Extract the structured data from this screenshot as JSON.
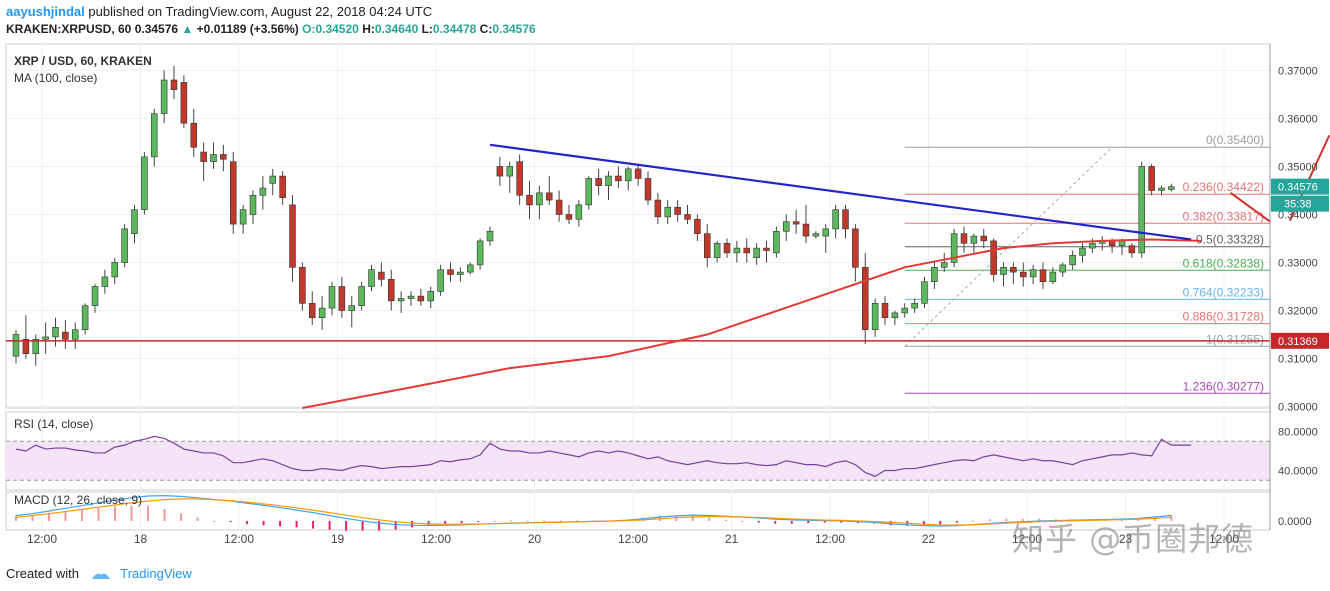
{
  "header": {
    "author": "aayushjindal",
    "published_text": "published on TradingView.com, August 22, 2018 04:24 UTC",
    "symbol": "KRAKEN:XRPUSD, 60",
    "last": "0.34576",
    "change_arrow": "▲",
    "change": "+0.01189 (+3.56%)",
    "o_label": "O:",
    "o": "0.34520",
    "h_label": "H:",
    "h": "0.34640",
    "l_label": "L:",
    "l": "0.34478",
    "c_label": "C:",
    "c": "0.34576"
  },
  "footer": {
    "created_with": "Created with",
    "brand": "TradingView"
  },
  "watermark": "知乎 @币圈邦德",
  "colors": {
    "up": "#26a69a",
    "down": "#ef5350",
    "candle_up_fill": "#5cb85c",
    "candle_down_fill": "#c0392b",
    "ma": "#e53935",
    "trendline": "#2424c8",
    "support": "#c62828",
    "rsi": "#7b3fa0",
    "rsi_band": "#f3e5f5",
    "macd_line": "#42a5f5",
    "signal_line": "#ff9800"
  },
  "chart_data": {
    "type": "candlestick",
    "title": "XRP / USD, 60, KRAKEN",
    "indicator_label": "MA (100, close)",
    "y_axis": {
      "ylim": [
        0.2997,
        0.3755
      ],
      "ticks": [
        "0.37000",
        "0.36000",
        "0.35000",
        "0.34000",
        "0.33000",
        "0.32000",
        "0.31000",
        "0.30000"
      ],
      "price_tag": "0.34576",
      "countdown": "35:38",
      "support_tag": "0.31369"
    },
    "x_axis": {
      "ticks": [
        "12:00",
        "18",
        "12:00",
        "19",
        "12:00",
        "20",
        "12:00",
        "21",
        "12:00",
        "22",
        "12:00",
        "23",
        "12:00"
      ]
    },
    "candles": [
      {
        "o": 0.3105,
        "h": 0.316,
        "l": 0.309,
        "c": 0.315
      },
      {
        "o": 0.314,
        "h": 0.319,
        "l": 0.31,
        "c": 0.311
      },
      {
        "o": 0.311,
        "h": 0.315,
        "l": 0.3085,
        "c": 0.314
      },
      {
        "o": 0.314,
        "h": 0.3175,
        "l": 0.311,
        "c": 0.3145
      },
      {
        "o": 0.3145,
        "h": 0.3185,
        "l": 0.3125,
        "c": 0.3165
      },
      {
        "o": 0.3155,
        "h": 0.318,
        "l": 0.312,
        "c": 0.314
      },
      {
        "o": 0.314,
        "h": 0.3175,
        "l": 0.312,
        "c": 0.316
      },
      {
        "o": 0.316,
        "h": 0.3215,
        "l": 0.315,
        "c": 0.321
      },
      {
        "o": 0.321,
        "h": 0.3255,
        "l": 0.3195,
        "c": 0.325
      },
      {
        "o": 0.325,
        "h": 0.3285,
        "l": 0.3235,
        "c": 0.327
      },
      {
        "o": 0.327,
        "h": 0.331,
        "l": 0.3255,
        "c": 0.33
      },
      {
        "o": 0.33,
        "h": 0.338,
        "l": 0.329,
        "c": 0.337
      },
      {
        "o": 0.336,
        "h": 0.342,
        "l": 0.334,
        "c": 0.341
      },
      {
        "o": 0.341,
        "h": 0.353,
        "l": 0.34,
        "c": 0.352
      },
      {
        "o": 0.352,
        "h": 0.362,
        "l": 0.35,
        "c": 0.361
      },
      {
        "o": 0.361,
        "h": 0.37,
        "l": 0.359,
        "c": 0.368
      },
      {
        "o": 0.368,
        "h": 0.371,
        "l": 0.364,
        "c": 0.366
      },
      {
        "o": 0.3675,
        "h": 0.369,
        "l": 0.358,
        "c": 0.359
      },
      {
        "o": 0.359,
        "h": 0.362,
        "l": 0.352,
        "c": 0.354
      },
      {
        "o": 0.353,
        "h": 0.355,
        "l": 0.347,
        "c": 0.351
      },
      {
        "o": 0.351,
        "h": 0.355,
        "l": 0.3495,
        "c": 0.3525
      },
      {
        "o": 0.3525,
        "h": 0.3545,
        "l": 0.349,
        "c": 0.3515
      },
      {
        "o": 0.351,
        "h": 0.353,
        "l": 0.336,
        "c": 0.338
      },
      {
        "o": 0.338,
        "h": 0.342,
        "l": 0.336,
        "c": 0.341
      },
      {
        "o": 0.34,
        "h": 0.345,
        "l": 0.338,
        "c": 0.344
      },
      {
        "o": 0.344,
        "h": 0.348,
        "l": 0.341,
        "c": 0.3455
      },
      {
        "o": 0.3465,
        "h": 0.3495,
        "l": 0.344,
        "c": 0.348
      },
      {
        "o": 0.348,
        "h": 0.349,
        "l": 0.342,
        "c": 0.3435
      },
      {
        "o": 0.342,
        "h": 0.344,
        "l": 0.326,
        "c": 0.329
      },
      {
        "o": 0.329,
        "h": 0.33,
        "l": 0.32,
        "c": 0.3215
      },
      {
        "o": 0.3215,
        "h": 0.324,
        "l": 0.317,
        "c": 0.3185
      },
      {
        "o": 0.3185,
        "h": 0.323,
        "l": 0.316,
        "c": 0.3205
      },
      {
        "o": 0.3205,
        "h": 0.326,
        "l": 0.319,
        "c": 0.325
      },
      {
        "o": 0.325,
        "h": 0.327,
        "l": 0.3185,
        "c": 0.32
      },
      {
        "o": 0.32,
        "h": 0.323,
        "l": 0.3165,
        "c": 0.321
      },
      {
        "o": 0.321,
        "h": 0.326,
        "l": 0.32,
        "c": 0.325
      },
      {
        "o": 0.325,
        "h": 0.3295,
        "l": 0.324,
        "c": 0.3285
      },
      {
        "o": 0.328,
        "h": 0.33,
        "l": 0.325,
        "c": 0.3265
      },
      {
        "o": 0.3265,
        "h": 0.3285,
        "l": 0.32,
        "c": 0.322
      },
      {
        "o": 0.322,
        "h": 0.324,
        "l": 0.3195,
        "c": 0.3225
      },
      {
        "o": 0.3225,
        "h": 0.324,
        "l": 0.321,
        "c": 0.323
      },
      {
        "o": 0.323,
        "h": 0.3245,
        "l": 0.321,
        "c": 0.322
      },
      {
        "o": 0.322,
        "h": 0.325,
        "l": 0.3205,
        "c": 0.324
      },
      {
        "o": 0.324,
        "h": 0.3295,
        "l": 0.323,
        "c": 0.3285
      },
      {
        "o": 0.3285,
        "h": 0.33,
        "l": 0.326,
        "c": 0.3275
      },
      {
        "o": 0.3275,
        "h": 0.329,
        "l": 0.326,
        "c": 0.328
      },
      {
        "o": 0.328,
        "h": 0.33,
        "l": 0.3275,
        "c": 0.3295
      },
      {
        "o": 0.3295,
        "h": 0.335,
        "l": 0.3285,
        "c": 0.3345
      },
      {
        "o": 0.3345,
        "h": 0.3375,
        "l": 0.3335,
        "c": 0.3365
      },
      {
        "o": 0.35,
        "h": 0.352,
        "l": 0.346,
        "c": 0.348
      },
      {
        "o": 0.348,
        "h": 0.351,
        "l": 0.3445,
        "c": 0.35
      },
      {
        "o": 0.351,
        "h": 0.3525,
        "l": 0.342,
        "c": 0.344
      },
      {
        "o": 0.344,
        "h": 0.347,
        "l": 0.339,
        "c": 0.342
      },
      {
        "o": 0.342,
        "h": 0.346,
        "l": 0.339,
        "c": 0.3445
      },
      {
        "o": 0.3445,
        "h": 0.348,
        "l": 0.342,
        "c": 0.343
      },
      {
        "o": 0.343,
        "h": 0.345,
        "l": 0.3385,
        "c": 0.34
      },
      {
        "o": 0.34,
        "h": 0.342,
        "l": 0.338,
        "c": 0.339
      },
      {
        "o": 0.339,
        "h": 0.343,
        "l": 0.3375,
        "c": 0.342
      },
      {
        "o": 0.342,
        "h": 0.348,
        "l": 0.341,
        "c": 0.3475
      },
      {
        "o": 0.3475,
        "h": 0.3495,
        "l": 0.344,
        "c": 0.346
      },
      {
        "o": 0.346,
        "h": 0.349,
        "l": 0.343,
        "c": 0.348
      },
      {
        "o": 0.348,
        "h": 0.35,
        "l": 0.3455,
        "c": 0.347
      },
      {
        "o": 0.347,
        "h": 0.35,
        "l": 0.345,
        "c": 0.3495
      },
      {
        "o": 0.3495,
        "h": 0.3505,
        "l": 0.346,
        "c": 0.3475
      },
      {
        "o": 0.3475,
        "h": 0.349,
        "l": 0.342,
        "c": 0.343
      },
      {
        "o": 0.343,
        "h": 0.3445,
        "l": 0.338,
        "c": 0.3395
      },
      {
        "o": 0.3395,
        "h": 0.343,
        "l": 0.338,
        "c": 0.3415
      },
      {
        "o": 0.3415,
        "h": 0.343,
        "l": 0.3385,
        "c": 0.34
      },
      {
        "o": 0.34,
        "h": 0.342,
        "l": 0.338,
        "c": 0.339
      },
      {
        "o": 0.339,
        "h": 0.34,
        "l": 0.3345,
        "c": 0.336
      },
      {
        "o": 0.336,
        "h": 0.338,
        "l": 0.329,
        "c": 0.331
      },
      {
        "o": 0.331,
        "h": 0.3345,
        "l": 0.33,
        "c": 0.334
      },
      {
        "o": 0.334,
        "h": 0.335,
        "l": 0.331,
        "c": 0.332
      },
      {
        "o": 0.332,
        "h": 0.3345,
        "l": 0.33,
        "c": 0.333
      },
      {
        "o": 0.333,
        "h": 0.335,
        "l": 0.33,
        "c": 0.332
      },
      {
        "o": 0.331,
        "h": 0.334,
        "l": 0.3295,
        "c": 0.333
      },
      {
        "o": 0.333,
        "h": 0.3345,
        "l": 0.33,
        "c": 0.3325
      },
      {
        "o": 0.332,
        "h": 0.3375,
        "l": 0.331,
        "c": 0.3365
      },
      {
        "o": 0.3365,
        "h": 0.34,
        "l": 0.3345,
        "c": 0.3385
      },
      {
        "o": 0.3385,
        "h": 0.341,
        "l": 0.336,
        "c": 0.338
      },
      {
        "o": 0.338,
        "h": 0.342,
        "l": 0.334,
        "c": 0.3355
      },
      {
        "o": 0.3355,
        "h": 0.3365,
        "l": 0.335,
        "c": 0.336
      },
      {
        "o": 0.3355,
        "h": 0.338,
        "l": 0.332,
        "c": 0.337
      },
      {
        "o": 0.337,
        "h": 0.342,
        "l": 0.335,
        "c": 0.341
      },
      {
        "o": 0.341,
        "h": 0.342,
        "l": 0.335,
        "c": 0.337
      },
      {
        "o": 0.337,
        "h": 0.338,
        "l": 0.326,
        "c": 0.329
      },
      {
        "o": 0.329,
        "h": 0.332,
        "l": 0.313,
        "c": 0.316
      },
      {
        "o": 0.316,
        "h": 0.3225,
        "l": 0.3145,
        "c": 0.3215
      },
      {
        "o": 0.3215,
        "h": 0.323,
        "l": 0.317,
        "c": 0.3185
      },
      {
        "o": 0.3185,
        "h": 0.32,
        "l": 0.317,
        "c": 0.3195
      },
      {
        "o": 0.3195,
        "h": 0.3215,
        "l": 0.3185,
        "c": 0.3205
      },
      {
        "o": 0.3205,
        "h": 0.3225,
        "l": 0.3195,
        "c": 0.3215
      },
      {
        "o": 0.3215,
        "h": 0.327,
        "l": 0.3205,
        "c": 0.326
      },
      {
        "o": 0.326,
        "h": 0.33,
        "l": 0.3245,
        "c": 0.329
      },
      {
        "o": 0.329,
        "h": 0.332,
        "l": 0.328,
        "c": 0.33
      },
      {
        "o": 0.33,
        "h": 0.337,
        "l": 0.329,
        "c": 0.336
      },
      {
        "o": 0.336,
        "h": 0.3375,
        "l": 0.332,
        "c": 0.334
      },
      {
        "o": 0.334,
        "h": 0.336,
        "l": 0.332,
        "c": 0.3355
      },
      {
        "o": 0.3355,
        "h": 0.337,
        "l": 0.333,
        "c": 0.3345
      },
      {
        "o": 0.3345,
        "h": 0.335,
        "l": 0.326,
        "c": 0.3275
      },
      {
        "o": 0.3275,
        "h": 0.33,
        "l": 0.325,
        "c": 0.329
      },
      {
        "o": 0.329,
        "h": 0.33,
        "l": 0.3255,
        "c": 0.328
      },
      {
        "o": 0.328,
        "h": 0.33,
        "l": 0.325,
        "c": 0.327
      },
      {
        "o": 0.327,
        "h": 0.3295,
        "l": 0.3255,
        "c": 0.3285
      },
      {
        "o": 0.3285,
        "h": 0.33,
        "l": 0.3245,
        "c": 0.326
      },
      {
        "o": 0.326,
        "h": 0.329,
        "l": 0.3255,
        "c": 0.328
      },
      {
        "o": 0.328,
        "h": 0.33,
        "l": 0.327,
        "c": 0.3295
      },
      {
        "o": 0.3295,
        "h": 0.3325,
        "l": 0.3285,
        "c": 0.3315
      },
      {
        "o": 0.3315,
        "h": 0.334,
        "l": 0.33,
        "c": 0.333
      },
      {
        "o": 0.333,
        "h": 0.335,
        "l": 0.332,
        "c": 0.334
      },
      {
        "o": 0.334,
        "h": 0.3355,
        "l": 0.3325,
        "c": 0.3345
      },
      {
        "o": 0.3345,
        "h": 0.335,
        "l": 0.332,
        "c": 0.3335
      },
      {
        "o": 0.3335,
        "h": 0.335,
        "l": 0.3315,
        "c": 0.3345
      },
      {
        "o": 0.3335,
        "h": 0.334,
        "l": 0.331,
        "c": 0.332
      },
      {
        "o": 0.332,
        "h": 0.351,
        "l": 0.331,
        "c": 0.35
      },
      {
        "o": 0.35,
        "h": 0.3505,
        "l": 0.344,
        "c": 0.345
      },
      {
        "o": 0.345,
        "h": 0.346,
        "l": 0.344,
        "c": 0.3455
      },
      {
        "o": 0.3452,
        "h": 0.3464,
        "l": 0.3448,
        "c": 0.3458
      }
    ],
    "ma": {
      "label": "MA (100, close)",
      "points": [
        [
          29,
          0.2997
        ],
        [
          40,
          0.304
        ],
        [
          50,
          0.308
        ],
        [
          60,
          0.3105
        ],
        [
          70,
          0.315
        ],
        [
          80,
          0.322
        ],
        [
          90,
          0.329
        ],
        [
          95,
          0.331
        ],
        [
          100,
          0.333
        ],
        [
          105,
          0.334
        ],
        [
          110,
          0.3345
        ],
        [
          115,
          0.3348
        ],
        [
          120,
          0.3345
        ]
      ]
    },
    "trendline": {
      "x0": 48,
      "y0": 0.3545,
      "x1": 119,
      "y1": 0.3348
    },
    "support_line": {
      "value": 0.31369,
      "label": "0.31369"
    },
    "fib_levels": [
      {
        "label": "0(0.35400)",
        "value": 0.354,
        "color": "#9e9e9e"
      },
      {
        "label": "0.236(0.34422)",
        "value": 0.34422,
        "color": "#e57373"
      },
      {
        "label": "0.382(0.33817)",
        "value": 0.33817,
        "color": "#e57373"
      },
      {
        "label": "0.5(0.33328)",
        "value": 0.33328,
        "color": "#616161"
      },
      {
        "label": "0.618(0.32838)",
        "value": 0.32838,
        "color": "#4caf50"
      },
      {
        "label": "0.764(0.32233)",
        "value": 0.32233,
        "color": "#64b5f6"
      },
      {
        "label": "0.886(0.31728)",
        "value": 0.31728,
        "color": "#e57373"
      },
      {
        "label": "1(0.31255)",
        "value": 0.31255,
        "color": "#90a4ae"
      },
      {
        "label": "1.236(0.30277)",
        "value": 0.30277,
        "color": "#ab47bc"
      }
    ],
    "fib_range": {
      "x_start": 90,
      "x_end": 158,
      "label_x": 145
    },
    "arrows": [
      {
        "points": [
          [
            123,
            0.3445
          ],
          [
            127,
            0.3385
          ]
        ],
        "color": "#d32f2f"
      },
      {
        "points": [
          [
            129,
            0.3387
          ],
          [
            133,
            0.3565
          ]
        ],
        "color": "#d32f2f"
      }
    ],
    "rsi": {
      "label": "RSI (14, close)",
      "ticks": [
        "80.0000",
        "40.0000"
      ],
      "ylim": [
        20,
        100
      ],
      "band": [
        30,
        70
      ],
      "values": [
        62,
        60,
        66,
        62,
        63,
        63,
        61,
        60,
        58,
        58,
        64,
        66,
        70,
        72,
        75,
        73,
        68,
        62,
        60,
        58,
        58,
        55,
        48,
        48,
        50,
        52,
        50,
        46,
        42,
        40,
        40,
        42,
        41,
        40,
        43,
        45,
        44,
        42,
        43,
        44,
        44,
        45,
        46,
        50,
        49,
        51,
        52,
        56,
        68,
        62,
        60,
        60,
        58,
        58,
        60,
        58,
        56,
        54,
        58,
        60,
        58,
        60,
        58,
        55,
        52,
        54,
        50,
        48,
        46,
        48,
        50,
        48,
        47,
        47,
        48,
        46,
        45,
        46,
        50,
        48,
        46,
        46,
        44,
        48,
        50,
        46,
        38,
        34,
        40,
        40,
        42,
        42,
        44,
        46,
        48,
        50,
        51,
        50,
        54,
        56,
        54,
        52,
        50,
        52,
        50,
        50,
        48,
        46,
        50,
        52,
        54,
        56,
        56,
        58,
        56,
        55,
        72,
        66,
        66,
        66
      ]
    },
    "macd": {
      "label": "MACD (12, 26, close, 9)",
      "ticks": [
        "0.0000"
      ],
      "ylim": [
        -0.005,
        0.016
      ],
      "macd": [
        0.003,
        0.004,
        0.0055,
        0.007,
        0.0085,
        0.01,
        0.0115,
        0.0128,
        0.0138,
        0.014,
        0.0136,
        0.0128,
        0.0118,
        0.011,
        0.0098,
        0.0086,
        0.0074,
        0.006,
        0.0046,
        0.003,
        0.0014,
        0.0,
        -0.0012,
        -0.002,
        -0.0024,
        -0.0025,
        -0.0024,
        -0.0022,
        -0.0018,
        -0.0015,
        -0.0012,
        -0.001,
        -0.0008,
        -0.0006,
        -0.0004,
        -0.0002,
        0.0,
        0.0004,
        0.0012,
        0.0022,
        0.0028,
        0.0032,
        0.003,
        0.0026,
        0.0022,
        0.0016,
        0.001,
        0.0006,
        0.0004,
        0.0002,
        0.0,
        -0.0004,
        -0.0008,
        -0.0016,
        -0.0022,
        -0.0026,
        -0.0028,
        -0.0026,
        -0.002,
        -0.0014,
        -0.0008,
        -0.0004,
        0.0,
        0.0002,
        0.0004,
        0.0006,
        0.0008,
        0.001,
        0.0014,
        0.0022,
        0.003
      ],
      "signal": [
        0.002,
        0.003,
        0.004,
        0.0052,
        0.0064,
        0.0076,
        0.0088,
        0.01,
        0.011,
        0.0118,
        0.0122,
        0.0122,
        0.0118,
        0.0112,
        0.0104,
        0.0094,
        0.0084,
        0.0072,
        0.006,
        0.0046,
        0.0032,
        0.0018,
        0.0006,
        -0.0004,
        -0.0012,
        -0.0016,
        -0.0018,
        -0.0018,
        -0.0017,
        -0.0015,
        -0.0013,
        -0.0011,
        -0.0009,
        -0.0007,
        -0.0005,
        -0.0003,
        -0.0001,
        0.0002,
        0.0006,
        0.0012,
        0.0018,
        0.0022,
        0.0024,
        0.0024,
        0.0022,
        0.0019,
        0.0015,
        0.0011,
        0.0008,
        0.0005,
        0.0003,
        0.0,
        -0.0003,
        -0.0008,
        -0.0013,
        -0.0018,
        -0.0022,
        -0.0023,
        -0.0021,
        -0.0017,
        -0.0012,
        -0.0008,
        -0.0004,
        -0.0001,
        0.0001,
        0.0003,
        0.0005,
        0.0007,
        0.001,
        0.0014,
        0.002
      ]
    }
  }
}
